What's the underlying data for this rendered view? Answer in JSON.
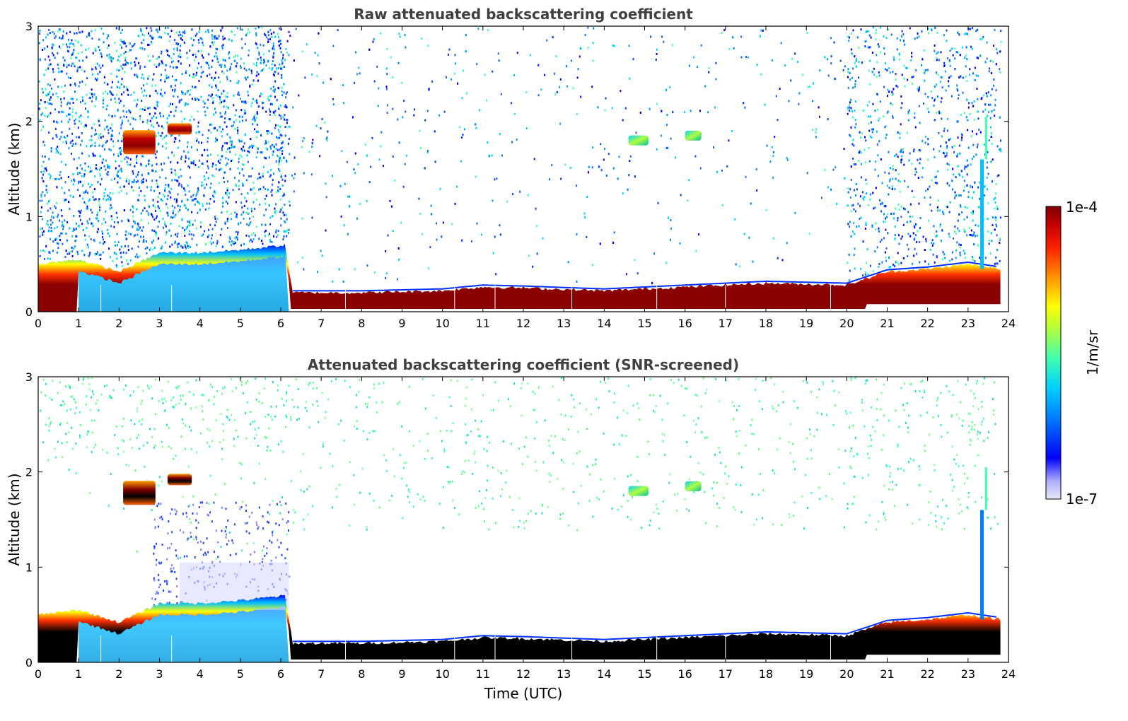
{
  "chart_data": [
    {
      "type": "heatmap",
      "title": "Raw attenuated backscattering coefficient",
      "xlabel": "",
      "ylabel": "Altitude (km)",
      "xlim": [
        0,
        24
      ],
      "ylim": [
        0,
        3
      ],
      "xticks": [
        "0",
        "1",
        "2",
        "3",
        "4",
        "5",
        "6",
        "7",
        "8",
        "9",
        "10",
        "11",
        "12",
        "13",
        "14",
        "15",
        "16",
        "17",
        "18",
        "19",
        "20",
        "21",
        "22",
        "23",
        "24"
      ],
      "yticks": [
        "0",
        "1",
        "2",
        "3"
      ],
      "boundary_layer_top_km": [
        [
          0,
          0.5
        ],
        [
          1,
          0.55
        ],
        [
          2,
          0.42
        ],
        [
          3,
          0.62
        ],
        [
          4,
          0.62
        ],
        [
          5,
          0.65
        ],
        [
          6.1,
          0.7
        ],
        [
          6.3,
          0.2
        ],
        [
          8,
          0.2
        ],
        [
          10,
          0.22
        ],
        [
          11,
          0.26
        ],
        [
          12,
          0.25
        ],
        [
          14,
          0.22
        ],
        [
          16,
          0.26
        ],
        [
          18,
          0.3
        ],
        [
          20,
          0.28
        ],
        [
          21,
          0.42
        ],
        [
          22,
          0.45
        ],
        [
          23,
          0.5
        ],
        [
          23.8,
          0.45
        ]
      ],
      "cloud_layers": [
        {
          "start_h": 2.1,
          "end_h": 2.9,
          "alt_km": 1.78
        },
        {
          "start_h": 3.2,
          "end_h": 3.8,
          "alt_km": 1.92
        },
        {
          "start_h": 14.6,
          "end_h": 15.1,
          "alt_km": 1.8
        },
        {
          "start_h": 16,
          "end_h": 16.4,
          "alt_km": 1.85
        }
      ]
    },
    {
      "type": "heatmap",
      "title": "Attenuated backscattering coefficient (SNR-screened)",
      "xlabel": "Time (UTC)",
      "ylabel": "Altitude (km)",
      "xlim": [
        0,
        24
      ],
      "ylim": [
        0,
        3
      ],
      "xticks": [
        "0",
        "1",
        "2",
        "3",
        "4",
        "5",
        "6",
        "7",
        "8",
        "9",
        "10",
        "11",
        "12",
        "13",
        "14",
        "15",
        "16",
        "17",
        "18",
        "19",
        "20",
        "21",
        "22",
        "23",
        "24"
      ],
      "yticks": [
        "0",
        "1",
        "2",
        "3"
      ]
    }
  ],
  "colorbar": {
    "max_label": "1e-4",
    "min_label": "1e-7",
    "unit_label": "1/m/sr",
    "scale": "log",
    "colors": [
      "#e8e8f8",
      "#b0b0ff",
      "#0000ff",
      "#0080ff",
      "#00d0ff",
      "#40ffb0",
      "#b0ff40",
      "#ffff00",
      "#ff9000",
      "#ff2000",
      "#c00000",
      "#800000"
    ]
  }
}
